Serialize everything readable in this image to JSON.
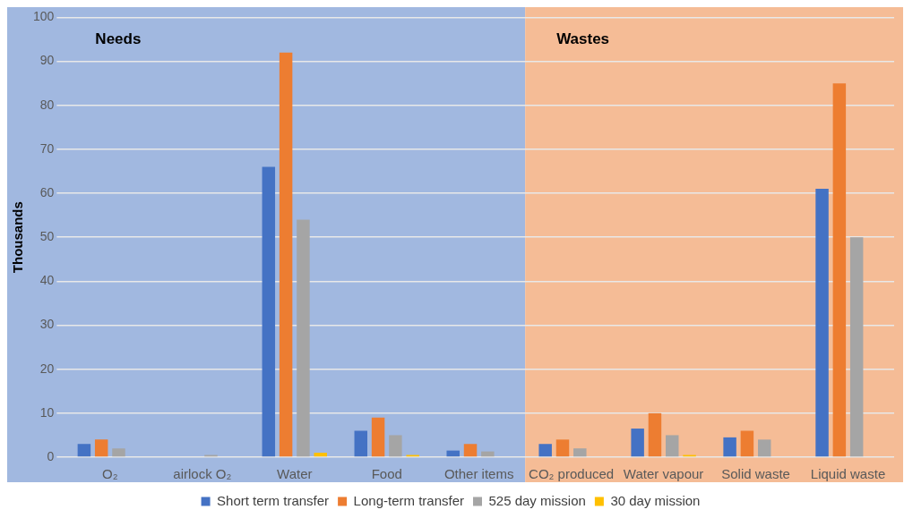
{
  "chart_data": {
    "type": "bar",
    "ylabel": "Thousands",
    "categories": [
      "O₂",
      "airlock O₂",
      "Water",
      "Food",
      "Other items",
      "CO₂ produced",
      "Water vapour",
      "Solid waste",
      "Liquid waste"
    ],
    "series": [
      {
        "name": "Short term transfer",
        "color": "#4472c4",
        "values": [
          3,
          0,
          66,
          6,
          1.5,
          3,
          6.5,
          4.5,
          61
        ]
      },
      {
        "name": "Long-term transfer",
        "color": "#ed7d31",
        "values": [
          4,
          0,
          92,
          9,
          3,
          4,
          10,
          6,
          85
        ]
      },
      {
        "name": "525 day mission",
        "color": "#a5a5a5",
        "values": [
          2,
          0.5,
          54,
          5,
          1.3,
          2,
          5,
          4,
          50
        ]
      },
      {
        "name": "30 day mission",
        "color": "#ffc000",
        "values": [
          0,
          0,
          1,
          0.5,
          0,
          0,
          0.5,
          0,
          0
        ]
      }
    ],
    "ylim": [
      0,
      100
    ],
    "yticks": [
      0,
      10,
      20,
      30,
      40,
      50,
      60,
      70,
      80,
      90,
      100
    ],
    "grid": "y",
    "legend": "bottom",
    "bands": [
      {
        "axis": "x",
        "from": "O₂",
        "to": "Other items",
        "label": "Needs",
        "color": "#a1b8e0"
      },
      {
        "axis": "x",
        "from": "CO₂ produced",
        "to": "Liquid waste",
        "label": "Wastes",
        "color": "#f5bc96"
      }
    ]
  }
}
